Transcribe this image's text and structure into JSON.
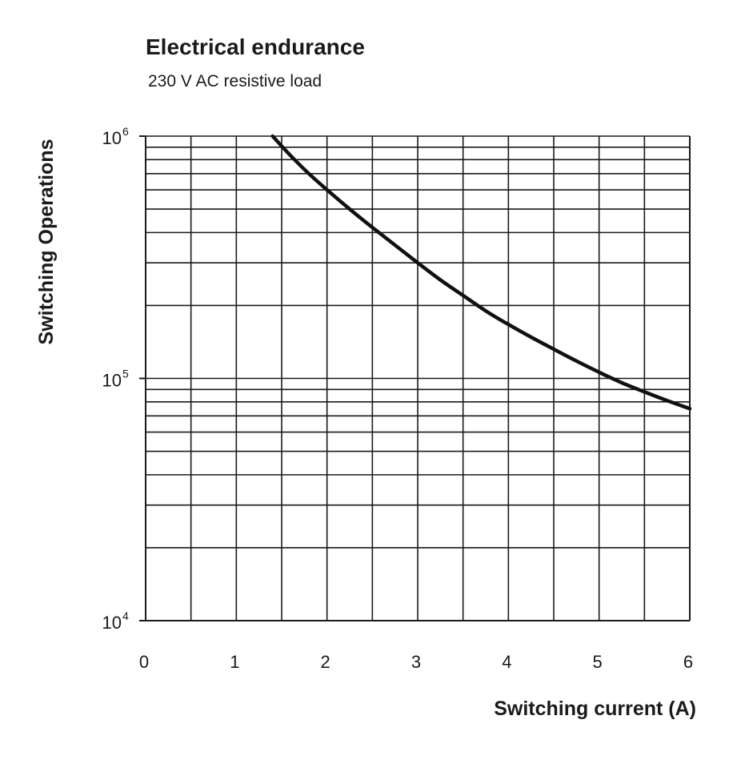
{
  "chart_data": {
    "type": "line",
    "title": "Electrical endurance",
    "subtitle": "230 V AC resistive load",
    "xlabel": "Switching current (A)",
    "ylabel": "Switching Operations",
    "x_scale": "linear",
    "y_scale": "log",
    "xlim": [
      0,
      6
    ],
    "ylim": [
      10000,
      1000000
    ],
    "grid": true,
    "x_ticks": [
      "0",
      "1",
      "2",
      "3",
      "4",
      "5",
      "6"
    ],
    "y_ticks": [
      {
        "value": 10000,
        "base": "10",
        "exp": "4"
      },
      {
        "value": 100000,
        "base": "10",
        "exp": "5"
      },
      {
        "value": 1000000,
        "base": "10",
        "exp": "6"
      }
    ],
    "series": [
      {
        "color": "#111111",
        "x": [
          1.4,
          1.6,
          1.8,
          2.0,
          2.25,
          2.5,
          2.75,
          3.0,
          3.25,
          3.5,
          3.75,
          4.0,
          4.25,
          4.5,
          4.75,
          5.0,
          5.25,
          5.5,
          5.75,
          6.0
        ],
        "y": [
          1000000,
          830000,
          700000,
          600000,
          500000,
          420000,
          355000,
          300000,
          255000,
          220000,
          190000,
          167000,
          148000,
          132000,
          118000,
          106000,
          96000,
          88000,
          81000,
          75000
        ]
      }
    ]
  }
}
